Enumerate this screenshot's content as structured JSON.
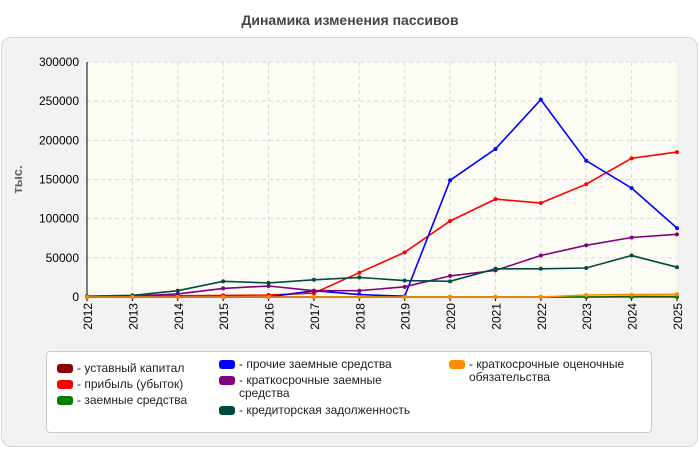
{
  "title": "Динамика изменения пассивов",
  "chart_data": {
    "type": "line",
    "title": "Динамика изменения пассивов",
    "ylabel": "тыс.",
    "xlabel": "",
    "ylim": [
      0,
      300000
    ],
    "yticks": [
      "0",
      "50000",
      "100000",
      "150000",
      "200000",
      "250000",
      "300000"
    ],
    "x": [
      "2012",
      "2013",
      "2014",
      "2015",
      "2016",
      "2017",
      "2018",
      "2019",
      "2020",
      "2021",
      "2022",
      "2023",
      "2024",
      "2025"
    ],
    "grid": true,
    "legend_position": "bottom",
    "series": [
      {
        "name": "- уставный капитал",
        "color": "#8b0000",
        "values": [
          10,
          10,
          10,
          10,
          10,
          10,
          10,
          10,
          10,
          10,
          10,
          10,
          500,
          500
        ]
      },
      {
        "name": "- прибыль (убыток)",
        "color": "#ff0000",
        "values": [
          500,
          1000,
          1500,
          2000,
          2500,
          5000,
          31000,
          57000,
          97000,
          125000,
          120000,
          144000,
          177000,
          185000
        ]
      },
      {
        "name": "- заемные средства",
        "color": "#008000",
        "values": [
          0,
          0,
          0,
          0,
          0,
          0,
          0,
          0,
          0,
          0,
          0,
          0,
          0,
          0
        ]
      },
      {
        "name": "- прочие заемные средства",
        "color": "#0000ff",
        "values": [
          0,
          0,
          0,
          0,
          0,
          8000,
          3000,
          1000,
          149000,
          189000,
          252000,
          174000,
          139000,
          88000
        ]
      },
      {
        "name": "- краткосрочные заемные средства",
        "color": "#800080",
        "values": [
          500,
          1000,
          4000,
          11000,
          14000,
          8000,
          8000,
          13000,
          27000,
          34000,
          53000,
          66000,
          76000,
          80000
        ]
      },
      {
        "name": "- кредиторская задолженность",
        "color": "#004d40",
        "values": [
          1000,
          2000,
          8000,
          20000,
          18000,
          22000,
          25000,
          21000,
          20000,
          36000,
          36000,
          37000,
          53000,
          38000
        ]
      },
      {
        "name": "- краткосрочные оценочные обязательства",
        "color": "#ff8c00",
        "values": [
          0,
          0,
          0,
          0,
          0,
          0,
          0,
          0,
          0,
          0,
          0,
          2500,
          3000,
          3500
        ]
      }
    ]
  },
  "legend": {
    "items": [
      {
        "label": "- уставный капитал",
        "color": "#8b0000"
      },
      {
        "label": "- прибыль (убыток)",
        "color": "#ff0000"
      },
      {
        "label": "- заемные средства",
        "color": "#008000"
      },
      {
        "label": "- прочие заемные средства",
        "color": "#0000ff"
      },
      {
        "label": "- краткосрочные заемные средства",
        "color": "#800080"
      },
      {
        "label": "- кредиторская задолженность",
        "color": "#004d40"
      },
      {
        "label": "- краткосрочные оценочные обязательства",
        "color": "#ff8c00"
      }
    ]
  }
}
